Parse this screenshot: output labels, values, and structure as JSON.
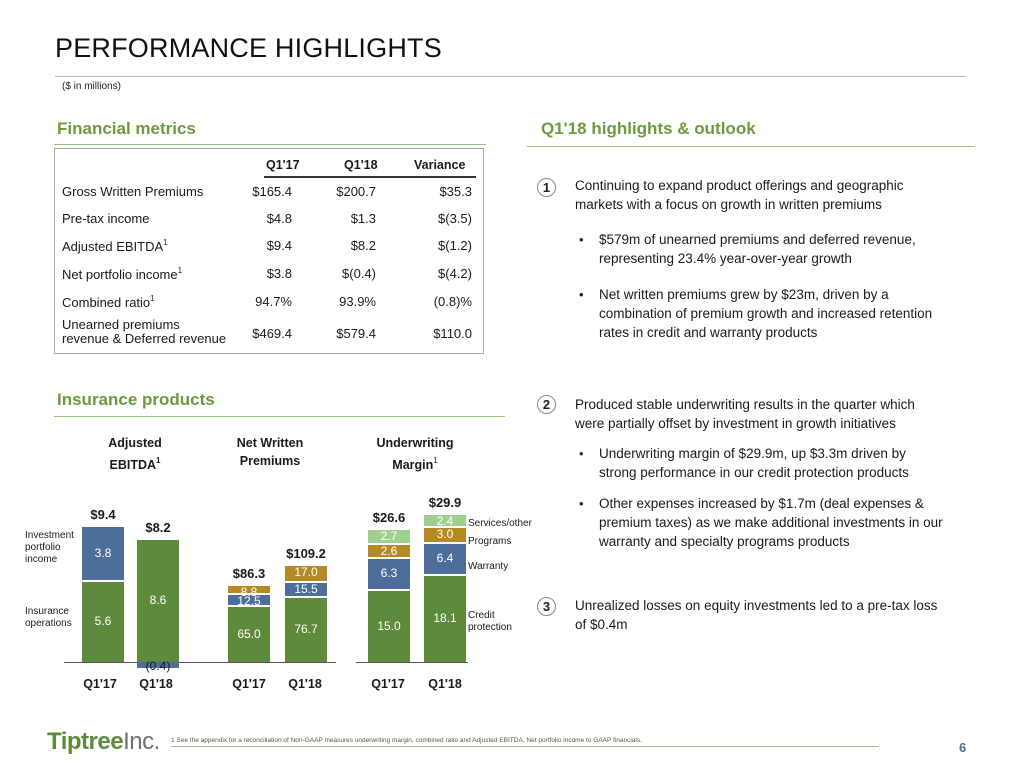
{
  "header": {
    "title": "PERFORMANCE HIGHLIGHTS",
    "subtitle": "($ in millions)"
  },
  "financial_metrics": {
    "heading": "Financial metrics",
    "columns": [
      "Q1'17",
      "Q1'18",
      "Variance"
    ],
    "rows": [
      {
        "label": "Gross Written Premiums",
        "sup": "",
        "q117": "$165.4",
        "q118": "$200.7",
        "variance": "$35.3"
      },
      {
        "label": "Pre-tax income",
        "sup": "",
        "q117": "$4.8",
        "q118": "$1.3",
        "variance": "$(3.5)"
      },
      {
        "label": "Adjusted EBITDA",
        "sup": "1",
        "q117": "$9.4",
        "q118": "$8.2",
        "variance": "$(1.2)"
      },
      {
        "label": "Net portfolio income",
        "sup": "1",
        "q117": "$3.8",
        "q118": "$(0.4)",
        "variance": "$(4.2)"
      },
      {
        "label": "Combined ratio",
        "sup": "1",
        "q117": "94.7%",
        "q118": "93.9%",
        "variance": "(0.8)%"
      },
      {
        "label_line1": "Unearned premiums",
        "label_line2": "revenue & Deferred revenue",
        "q117": "$469.4",
        "q118": "$579.4",
        "variance": "$110.0"
      }
    ]
  },
  "highlights": {
    "heading": "Q1'18 highlights & outlook",
    "items": [
      {
        "number": "1",
        "line1": "Continuing to expand product offerings and geographic",
        "line2": "markets with a focus on growth in written premiums",
        "bullets": [
          {
            "line1": "$579m of unearned premiums and deferred revenue,",
            "line2": "representing 23.4% year-over-year growth"
          },
          {
            "line1": "Net written premiums grew by $23m, driven by a",
            "line2": "combination of premium growth and increased retention",
            "line3": "rates in credit and warranty products"
          }
        ]
      },
      {
        "number": "2",
        "line1": "Produced stable underwriting results in the quarter which",
        "line2": "were partially offset by investment in growth initiatives",
        "bullets": [
          {
            "line1": "Underwriting margin of $29.9m, up $3.3m driven by",
            "line2": "strong performance in our credit protection products"
          },
          {
            "line1": "Other expenses increased by $1.7m (deal expenses &",
            "line2": "premium taxes) as we make additional investments in our",
            "line3": "warranty and specialty programs products"
          }
        ]
      },
      {
        "number": "3",
        "line1": "Unrealized losses on equity investments led to a pre-tax loss",
        "line2": "of $0.4m"
      }
    ],
    "bullet_char": "•"
  },
  "insurance_products": {
    "heading": "Insurance products",
    "groups": [
      {
        "title_line1": "Adjusted",
        "title_line2": "EBITDA",
        "title_sup": "1",
        "categories": [
          "Q1'17",
          "Q1'18"
        ],
        "totals": [
          "$9.4",
          "$8.2"
        ]
      },
      {
        "title_line1": "Net Written",
        "title_line2": "Premiums",
        "title_sup": "",
        "categories": [
          "Q1'17",
          "Q1'18"
        ],
        "totals": [
          "$86.3",
          "$109.2"
        ]
      },
      {
        "title_line1": "Underwriting",
        "title_line2": "Margin",
        "title_sup": "1",
        "categories": [
          "Q1'17",
          "Q1'18"
        ],
        "totals": [
          "$26.6",
          "$29.9"
        ]
      }
    ],
    "left_labels": {
      "investment_line1": "Investment",
      "investment_line2": "portfolio",
      "investment_line3": "income",
      "insurance_line1": "Insurance",
      "insurance_line2": "operations"
    },
    "right_labels": {
      "services": "Services/other",
      "programs": "Programs",
      "warranty": "Warranty",
      "credit_line1": "Credit",
      "credit_line2": "protection"
    }
  },
  "chart_data": [
    {
      "type": "bar",
      "title": "Adjusted EBITDA",
      "stacked": true,
      "categories": [
        "Q1'17",
        "Q1'18"
      ],
      "series": [
        {
          "name": "Insurance operations",
          "values": [
            5.6,
            8.6
          ]
        },
        {
          "name": "Investment portfolio income",
          "values": [
            3.8,
            -0.4
          ]
        }
      ],
      "totals": [
        9.4,
        8.2
      ],
      "colors": {
        "Insurance operations": "#5e8a3c",
        "Investment portfolio income": "#4d6d9a"
      }
    },
    {
      "type": "bar",
      "title": "Net Written Premiums",
      "stacked": true,
      "categories": [
        "Q1'17",
        "Q1'18"
      ],
      "series": [
        {
          "name": "Credit protection",
          "values": [
            65.0,
            76.7
          ]
        },
        {
          "name": "Warranty",
          "values": [
            12.5,
            15.5
          ]
        },
        {
          "name": "Programs",
          "values": [
            8.8,
            17.0
          ]
        }
      ],
      "totals": [
        86.3,
        109.2
      ],
      "colors": {
        "Credit protection": "#5e8a3c",
        "Warranty": "#4d6d9a",
        "Programs": "#b58a24"
      }
    },
    {
      "type": "bar",
      "title": "Underwriting Margin",
      "stacked": true,
      "categories": [
        "Q1'17",
        "Q1'18"
      ],
      "series": [
        {
          "name": "Credit protection",
          "values": [
            15.0,
            18.1
          ]
        },
        {
          "name": "Warranty",
          "values": [
            6.3,
            6.4
          ]
        },
        {
          "name": "Programs",
          "values": [
            2.6,
            3.0
          ]
        },
        {
          "name": "Services/other",
          "values": [
            2.7,
            2.4
          ]
        }
      ],
      "totals": [
        26.6,
        29.9
      ],
      "colors": {
        "Credit protection": "#5e8a3c",
        "Warranty": "#4d6d9a",
        "Programs": "#b58a24",
        "Services/other": "#9fd08d"
      }
    }
  ],
  "footer": {
    "logo_main": "Tiptree",
    "logo_suffix": "Inc.",
    "footnote": "1 See the appendix for a reconciliation of Non-GAAP measures underwriting margin, combined ratio and Adjusted EBITDA, Net portfolio income to GAAP financials.",
    "page_number": "6"
  }
}
